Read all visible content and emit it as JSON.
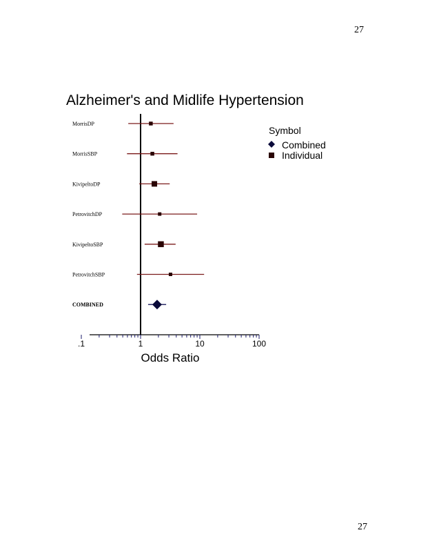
{
  "page": {
    "number_top": "27",
    "number_bottom": "27"
  },
  "chart_data": {
    "type": "forest",
    "title": "Alzheimer's and Midlife Hypertension",
    "xlabel": "Odds Ratio",
    "x_scale": "log",
    "xlim": [
      0.1,
      100
    ],
    "x_ticks": [
      ".1",
      "1",
      "10",
      "100"
    ],
    "reference_line": 1,
    "legend": {
      "title": "Symbol",
      "placement": "top-right",
      "entries": [
        {
          "label": "Combined",
          "symbol": "diamond",
          "color": "#0a0a3a"
        },
        {
          "label": "Individual",
          "symbol": "square",
          "color": "#2a0505"
        }
      ]
    },
    "colors": {
      "individual_ci": "#7a1a1a",
      "combined_ci": "#1a1a5a"
    },
    "studies": [
      {
        "label": "MorrisDP",
        "or": 1.49,
        "lo": 0.62,
        "hi": 3.6,
        "weight": 1,
        "type": "individual"
      },
      {
        "label": "MorrisSBP",
        "or": 1.58,
        "lo": 0.59,
        "hi": 4.2,
        "weight": 1,
        "type": "individual"
      },
      {
        "label": "KivipeltoDP",
        "or": 1.71,
        "lo": 0.95,
        "hi": 3.1,
        "weight": 2,
        "type": "individual"
      },
      {
        "label": "PetrovitchDP",
        "or": 2.1,
        "lo": 0.49,
        "hi": 9.0,
        "weight": 0.8,
        "type": "individual"
      },
      {
        "label": "KivipeltoSBP",
        "or": 2.2,
        "lo": 1.17,
        "hi": 3.9,
        "weight": 2.2,
        "type": "individual"
      },
      {
        "label": "PetrovitchSBP",
        "or": 3.2,
        "lo": 0.87,
        "hi": 11.8,
        "weight": 0.8,
        "type": "individual"
      },
      {
        "label": "COMBINED",
        "or": 1.9,
        "lo": 1.34,
        "hi": 2.7,
        "weight": 2,
        "type": "combined"
      }
    ]
  }
}
